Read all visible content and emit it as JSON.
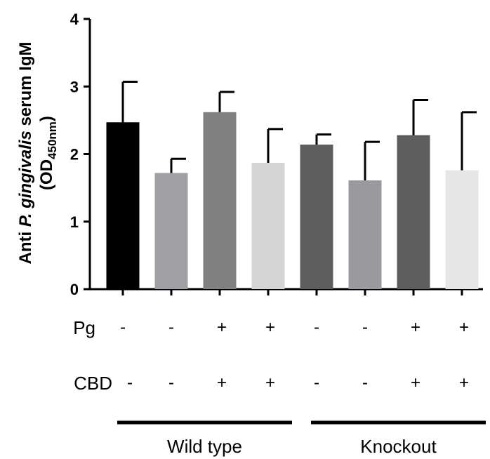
{
  "chart_data": {
    "type": "bar",
    "ylabel": {
      "prefix": "Anti ",
      "italic": "P. gingivalis",
      "suffix": " serum IgM",
      "line2_open": "(OD",
      "line2_sub": "450nm",
      "line2_close": ")"
    },
    "ylim": [
      0,
      4
    ],
    "yticks": [
      "0",
      "1",
      "2",
      "3",
      "4"
    ],
    "values": [
      2.47,
      1.72,
      2.62,
      1.87,
      2.14,
      1.61,
      2.28,
      1.76
    ],
    "errors": [
      0.6,
      0.21,
      0.3,
      0.5,
      0.15,
      0.57,
      0.52,
      0.86
    ],
    "colors": [
      "#000000",
      "#a0a0a4",
      "#808080",
      "#d4d4d4",
      "#5e5e5e",
      "#9a9a9e",
      "#5e5e5e",
      "#e6e6e6"
    ],
    "factors": [
      {
        "label": "Pg",
        "values": [
          "-",
          "-",
          "+",
          "+",
          "-",
          "-",
          "+",
          "+"
        ]
      },
      {
        "label": "CBD",
        "values": [
          "-",
          "-",
          "+",
          "+",
          "-",
          "-",
          "+",
          "+"
        ]
      }
    ],
    "groups": [
      {
        "label": "Wild type",
        "bars": [
          0,
          1,
          2,
          3
        ]
      },
      {
        "label": "Knockout",
        "bars": [
          4,
          5,
          6,
          7
        ]
      }
    ]
  }
}
